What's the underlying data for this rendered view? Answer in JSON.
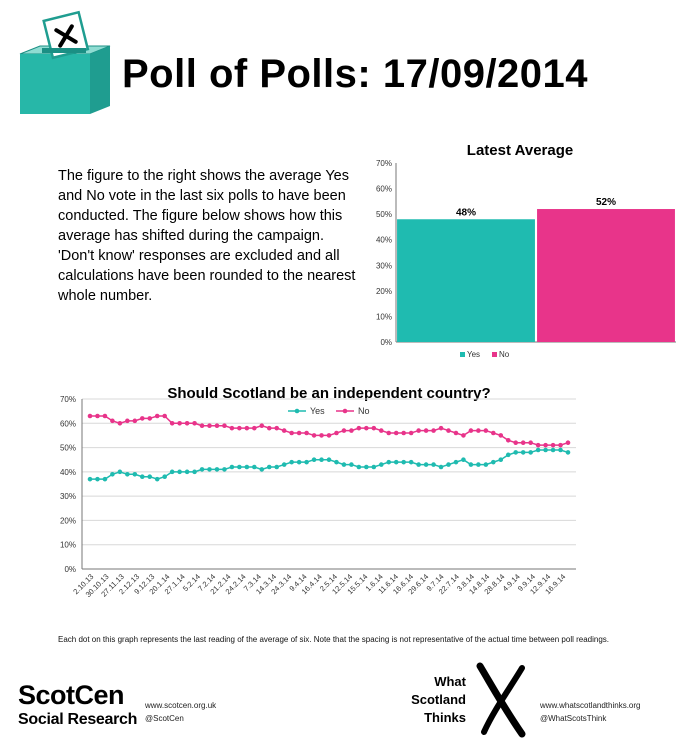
{
  "title": "Poll of Polls: 17/09/2014",
  "intro": "The figure to the right shows the average Yes and No vote in the last six polls to have been conducted. The figure below shows how this average has shifted during the campaign. 'Don't know' responses are excluded  and all calculations have been rounded to the nearest whole number.",
  "footnote": "Each dot on this graph represents the last reading of the average of six. Note that the spacing is not representative of the actual time between poll readings.",
  "footer": {
    "scotcen_name": "ScotCen",
    "scotcen_sub": "Social Research",
    "scotcen_web": "www.scotcen.org.uk",
    "scotcen_handle": "@ScotCen",
    "wst_words": [
      "What",
      "Scotland",
      "Thinks"
    ],
    "wst_web": "www.whatscotlandthinks.org",
    "wst_handle": "@WhatScotsThink"
  },
  "colors": {
    "yes": "#1fbbb0",
    "no": "#e8348a",
    "ballot_box": "#27b7a8"
  },
  "icons": [
    "ballot-box-icon",
    "x-logo-icon"
  ],
  "chart_data": [
    {
      "type": "bar",
      "title": "Latest Average",
      "categories": [
        "Yes",
        "No"
      ],
      "values": [
        48,
        52
      ],
      "data_labels": [
        "48%",
        "52%"
      ],
      "ylim": [
        0,
        70
      ],
      "yticks": [
        "0%",
        "10%",
        "20%",
        "30%",
        "40%",
        "50%",
        "60%",
        "70%"
      ],
      "legend": [
        "Yes",
        "No"
      ],
      "legend_position": "bottom"
    },
    {
      "type": "line",
      "title": "Should Scotland be an independent country?",
      "ylim": [
        0,
        70
      ],
      "yticks": [
        "0%",
        "10%",
        "20%",
        "30%",
        "40%",
        "50%",
        "60%",
        "70%"
      ],
      "grid": true,
      "legend_position": "top",
      "xticks": [
        "2.10.13",
        "30.10.13",
        "27.11.13",
        "2.12.13",
        "9.12.13",
        "20.1.14",
        "27.1.14",
        "5.2.14",
        "7.2.14",
        "21.2.14",
        "24.2.14",
        "7.3.14",
        "14.3.14",
        "24.3.14",
        "9.4.14",
        "16.4.14",
        "2.5.14",
        "12.5.14",
        "15.5.14",
        "1.6.14",
        "11.6.14",
        "16.6.14",
        "29.6.14",
        "9.7.14",
        "22.7.14",
        "3.8.14",
        "14.8.14",
        "28.8.14",
        "4.9.14",
        "9.9.14",
        "12.9.14",
        "16.9.14"
      ],
      "series": [
        {
          "name": "Yes",
          "values": [
            37,
            37,
            37,
            39,
            40,
            39,
            39,
            38,
            38,
            37,
            38,
            40,
            40,
            40,
            40,
            41,
            41,
            41,
            41,
            42,
            42,
            42,
            42,
            41,
            42,
            42,
            43,
            44,
            44,
            44,
            45,
            45,
            45,
            44,
            43,
            43,
            42,
            42,
            42,
            43,
            44,
            44,
            44,
            44,
            43,
            43,
            43,
            42,
            43,
            44,
            45,
            43,
            43,
            43,
            44,
            45,
            47,
            48,
            48,
            48,
            49,
            49,
            49,
            49,
            48
          ]
        },
        {
          "name": "No",
          "values": [
            63,
            63,
            63,
            61,
            60,
            61,
            61,
            62,
            62,
            63,
            63,
            60,
            60,
            60,
            60,
            59,
            59,
            59,
            59,
            58,
            58,
            58,
            58,
            59,
            58,
            58,
            57,
            56,
            56,
            56,
            55,
            55,
            55,
            56,
            57,
            57,
            58,
            58,
            58,
            57,
            56,
            56,
            56,
            56,
            57,
            57,
            57,
            58,
            57,
            56,
            55,
            57,
            57,
            57,
            56,
            55,
            53,
            52,
            52,
            52,
            51,
            51,
            51,
            51,
            52
          ]
        }
      ]
    }
  ]
}
